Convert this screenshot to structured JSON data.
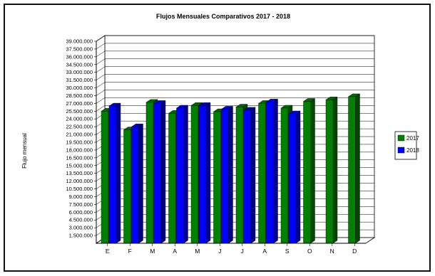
{
  "chart_data": {
    "type": "bar",
    "title": "Flujos Mensuales Comparativos 2017 - 2018",
    "ylabel": "Flujo mensual",
    "xlabel": "",
    "categories": [
      "E",
      "F",
      "M",
      "A",
      "M",
      "J",
      "J",
      "A",
      "S",
      "O",
      "N",
      "D"
    ],
    "ylim": [
      0,
      39000000
    ],
    "ytick_labels": [
      "1.500.000",
      "3.000.000",
      "4.500.000",
      "6.000.000",
      "7.500.000",
      "9.000.000",
      "10.500.000",
      "12.000.000",
      "13.500.000",
      "15.000.000",
      "16.500.000",
      "18.000.000",
      "19.500.000",
      "21.000.000",
      "22.500.000",
      "24.000.000",
      "25.500.000",
      "27.000.000",
      "28.500.000",
      "30.000.000",
      "31.500.000",
      "33.000.000",
      "34.500.000",
      "36.000.000",
      "37.500.000",
      "39.000.000"
    ],
    "grid": true,
    "legend_position": "right",
    "series": [
      {
        "name": "2017",
        "color": "#008000",
        "values": [
          25500000,
          21900000,
          27200000,
          25100000,
          26600000,
          25400000,
          26300000,
          27000000,
          26100000,
          27400000,
          27700000,
          28300000
        ]
      },
      {
        "name": "2018",
        "color": "#0000FF",
        "values": [
          26500000,
          22500000,
          27000000,
          26100000,
          26600000,
          25900000,
          25700000,
          27300000,
          25000000,
          null,
          null,
          null
        ]
      }
    ]
  }
}
